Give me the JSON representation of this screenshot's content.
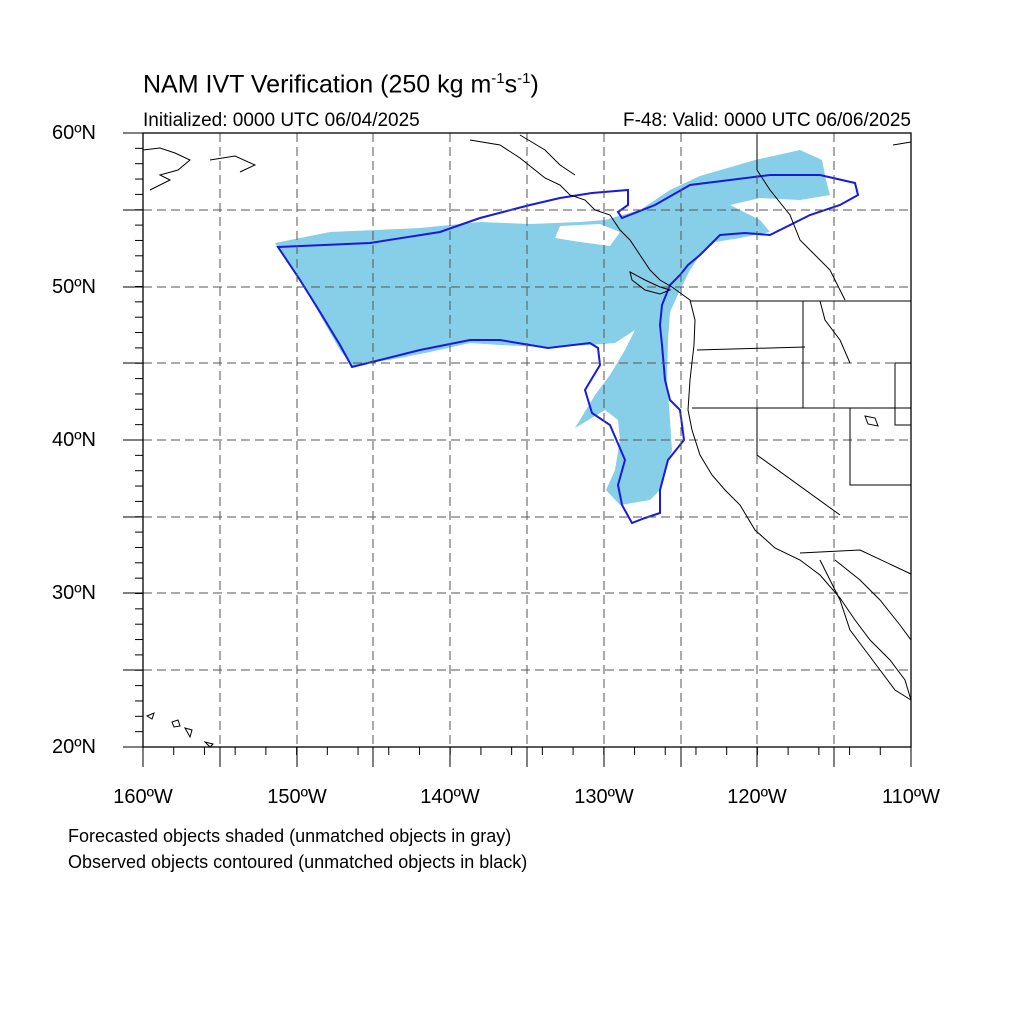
{
  "title": {
    "main": "NAM IVT Verification (250 kg m",
    "sup1": "-1",
    "mid": "s",
    "sup2": "-1",
    "close": ")"
  },
  "subtitle": {
    "initialized": "Initialized: 0000 UTC 06/04/2025",
    "valid": "F-48: Valid: 0000 UTC 06/06/2025"
  },
  "lat_labels": [
    "20ºN",
    "30ºN",
    "40ºN",
    "50ºN",
    "60ºN"
  ],
  "lon_labels": [
    "160ºW",
    "150ºW",
    "140ºW",
    "130ºW",
    "120ºW",
    "110ºW"
  ],
  "notes": [
    "Forecasted objects shaded (unmatched objects in gray)",
    "Observed objects contoured (unmatched objects in black)"
  ],
  "colors": {
    "forecast_fill": "#87cee8",
    "observed_contour": "#1a1adc",
    "grid": "#555555",
    "coast": "#000000"
  },
  "map_extent": {
    "lon_min": -160,
    "lon_max": -110,
    "lat_min": 20,
    "lat_max": 60
  }
}
